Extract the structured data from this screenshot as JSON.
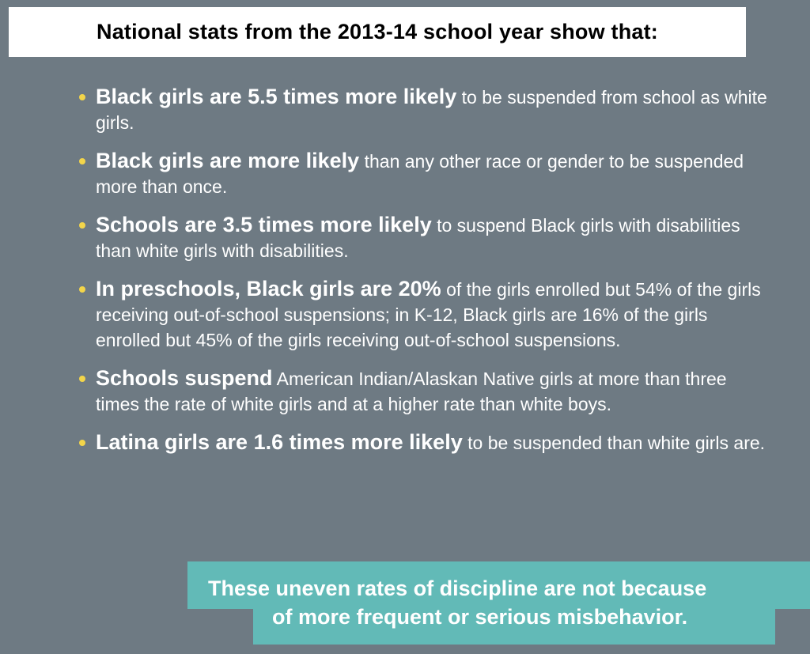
{
  "header": {
    "title": "National stats from the 2013-14 school year show that:"
  },
  "bullets": [
    {
      "bold": "Black girls are 5.5 times more likely",
      "rest": " to be suspended from school as white girls."
    },
    {
      "bold": "Black girls are more likely",
      "rest": " than any other race or gender to be suspended more than once."
    },
    {
      "bold": "Schools are 3.5 times more likely",
      "rest": " to suspend Black girls with disabilities than white girls with disabilities."
    },
    {
      "bold": "In preschools, Black girls are 20%",
      "rest": " of the girls enrolled but 54% of the girls receiving out-of-school suspensions; in K-12, Black girls are 16% of the girls enrolled but 45% of the girls receiving out-of-school suspensions."
    },
    {
      "bold": "Schools suspend",
      "rest": " American Indian/Alaskan Native girls at more than three times the rate of white girls and at a higher rate than white boys."
    },
    {
      "bold": "Latina girls are 1.6 times more likely",
      "rest": " to be suspended than white girls are."
    }
  ],
  "callout": {
    "line1": "These uneven rates of discipline are not because",
    "line2": "of more frequent or serious misbehavior."
  },
  "colors": {
    "background": "#6e7a83",
    "bullet": "#f3d54a",
    "callout": "#62bab7"
  }
}
